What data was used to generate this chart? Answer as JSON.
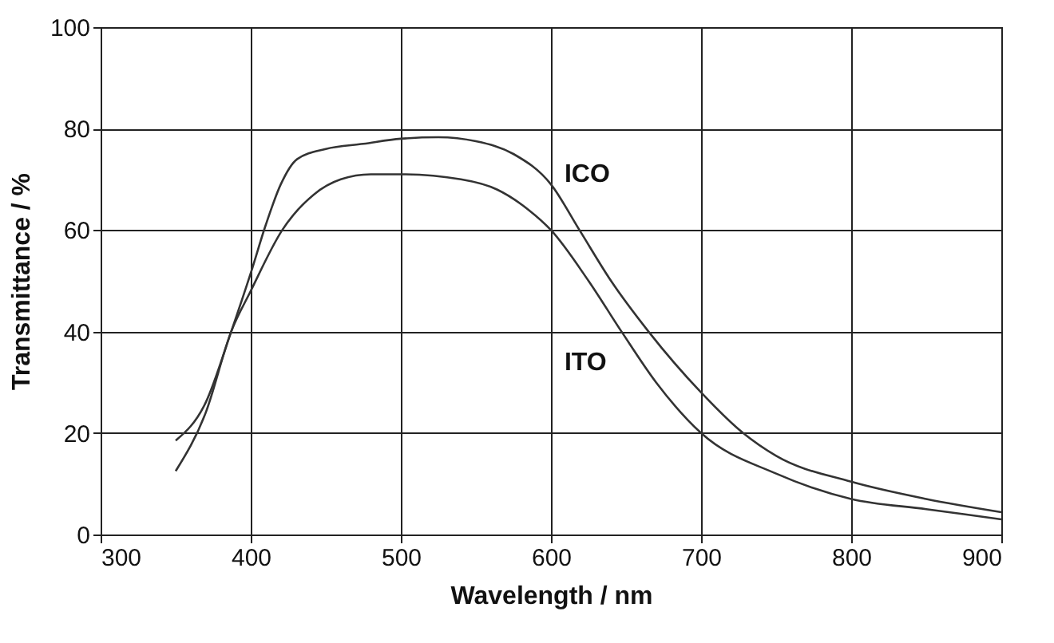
{
  "chart_data": {
    "type": "line",
    "xlabel": "Wavelength / nm",
    "ylabel": "Transmittance / %",
    "xlim": [
      300,
      900
    ],
    "xticks": [
      300,
      400,
      500,
      600,
      700,
      800,
      900
    ],
    "ylim": [
      0,
      100
    ],
    "yticks": [
      0,
      20,
      40,
      60,
      80,
      100
    ],
    "grid": true,
    "marker": "none",
    "line_style": "solid",
    "series": [
      {
        "name": "ICO",
        "color": "#333333",
        "x": [
          350,
          370,
          387,
          400,
          410,
          420,
          431,
          450,
          475,
          500,
          525,
          550,
          575,
          600,
          619,
          640,
          665,
          700,
          728,
          750,
          800,
          850,
          900
        ],
        "values": [
          18.5,
          26,
          40,
          51.5,
          61,
          69,
          74,
          76,
          77,
          78,
          78.3,
          77.5,
          75,
          69,
          60,
          50,
          40,
          28,
          20,
          15.5,
          10.4,
          7,
          4.4
        ]
      },
      {
        "name": "ITO",
        "color": "#333333",
        "x": [
          350,
          370,
          387,
          400,
          421,
          442,
          460,
          480,
          500,
          540,
          564,
          585,
          600,
          625,
          647,
          670,
          700,
          750,
          800,
          850,
          900
        ],
        "values": [
          12.5,
          24,
          40,
          48,
          60,
          67,
          70,
          71,
          71,
          70,
          68,
          64,
          60,
          50,
          40,
          30,
          20,
          12,
          7,
          5,
          3
        ]
      }
    ]
  }
}
